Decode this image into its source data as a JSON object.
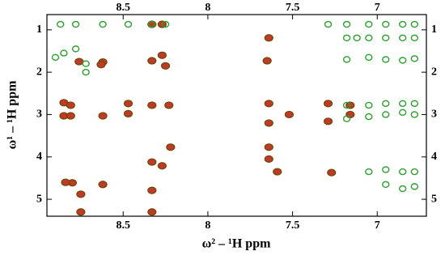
{
  "chart_data": {
    "type": "scatter",
    "x_label": "ω² – ¹H ppm",
    "y_label": "ω¹ – ¹H ppm",
    "xlim": [
      8.95,
      6.71
    ],
    "xticks": [
      8.5,
      8.0,
      7.5,
      7.0
    ],
    "ylim": [
      0.64,
      5.4
    ],
    "yticks": [
      1,
      2,
      3,
      4,
      5
    ],
    "series": [
      {
        "color": "#c0392b",
        "x": [
          8.85,
          8.85,
          8.81,
          8.81,
          8.76,
          8.75,
          8.8,
          8.75,
          8.84,
          8.62,
          8.62,
          8.62,
          8.63,
          8.47,
          8.47,
          8.33,
          8.27,
          8.33,
          8.27,
          8.25,
          8.33,
          8.23,
          8.33,
          8.27,
          8.22,
          8.33,
          8.33,
          7.64,
          7.65,
          7.64,
          7.64,
          7.64,
          7.59,
          7.64,
          7.52,
          7.29,
          7.29,
          7.27,
          7.16,
          7.16
        ],
        "y": [
          2.72,
          3.03,
          2.78,
          3.03,
          1.75,
          4.88,
          4.61,
          5.3,
          4.6,
          1.76,
          4.65,
          3.03,
          1.82,
          2.74,
          2.98,
          0.87,
          0.87,
          1.73,
          1.6,
          1.85,
          2.78,
          2.78,
          4.12,
          4.21,
          3.77,
          4.79,
          5.3,
          1.19,
          1.73,
          2.74,
          3.2,
          3.77,
          4.35,
          4.05,
          3.0,
          2.74,
          3.16,
          4.37,
          2.78,
          3.0
        ]
      },
      {
        "color": "#2ca02c",
        "x": [
          8.87,
          8.78,
          8.62,
          8.47,
          8.33,
          8.25,
          8.9,
          8.85,
          8.78,
          8.72,
          8.72,
          7.29,
          7.18,
          7.05,
          6.95,
          6.85,
          6.78,
          7.18,
          7.12,
          7.05,
          6.95,
          6.85,
          6.78,
          7.18,
          7.05,
          6.95,
          6.85,
          6.78,
          7.18,
          7.05,
          6.95,
          6.85,
          6.78,
          7.18,
          7.05,
          6.95,
          6.85,
          6.78,
          7.05,
          6.95,
          6.85,
          6.78,
          6.95,
          6.85,
          6.78
        ],
        "y": [
          0.87,
          0.87,
          0.87,
          0.87,
          0.87,
          0.87,
          1.65,
          1.55,
          1.45,
          1.8,
          2.0,
          0.87,
          0.87,
          0.87,
          0.87,
          0.87,
          0.87,
          1.19,
          1.19,
          1.19,
          1.19,
          1.19,
          1.19,
          1.7,
          1.65,
          1.7,
          1.72,
          1.68,
          2.78,
          2.78,
          2.74,
          2.74,
          2.74,
          3.1,
          3.05,
          3.0,
          2.95,
          3.0,
          4.35,
          4.3,
          4.35,
          4.35,
          4.65,
          4.75,
          4.7
        ]
      }
    ]
  }
}
